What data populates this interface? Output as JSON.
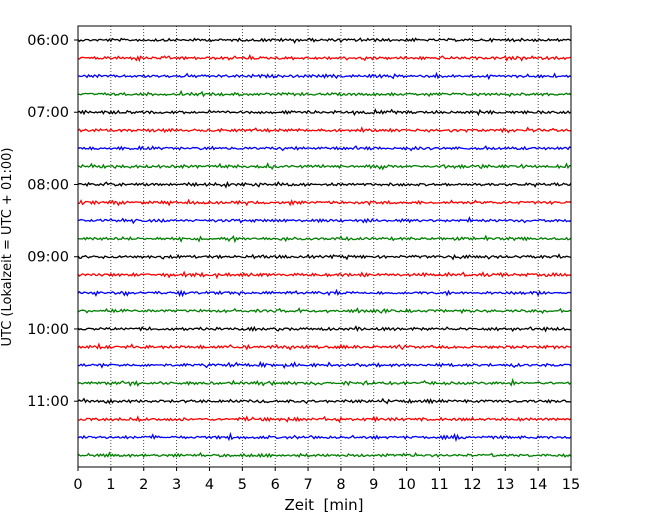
{
  "chart_data": {
    "type": "line",
    "title": "",
    "xlabel": "Zeit  [min]",
    "ylabel": "UTC (Lokalzeit = UTC + 01:00)",
    "xlim": [
      0,
      15
    ],
    "x_ticks": [
      0,
      1,
      2,
      3,
      4,
      5,
      6,
      7,
      8,
      9,
      10,
      11,
      12,
      13,
      14,
      15
    ],
    "y_tick_labels": [
      "06:00",
      "07:00",
      "08:00",
      "09:00",
      "10:00",
      "11:00"
    ],
    "traces_per_hour": 4,
    "trace_interval_minutes": 15,
    "trace_colors": [
      "#000000",
      "#ff0000",
      "#0000ff",
      "#008000"
    ],
    "traces": [
      "06:00",
      "06:15",
      "06:30",
      "06:45",
      "07:00",
      "07:15",
      "07:30",
      "07:45",
      "08:00",
      "08:15",
      "08:30",
      "08:45",
      "09:00",
      "09:15",
      "09:30",
      "09:45",
      "10:00",
      "10:15",
      "10:30",
      "10:45",
      "11:00",
      "11:15",
      "11:30",
      "11:45"
    ],
    "grid_x": true,
    "grid_y": false,
    "legend": false
  }
}
